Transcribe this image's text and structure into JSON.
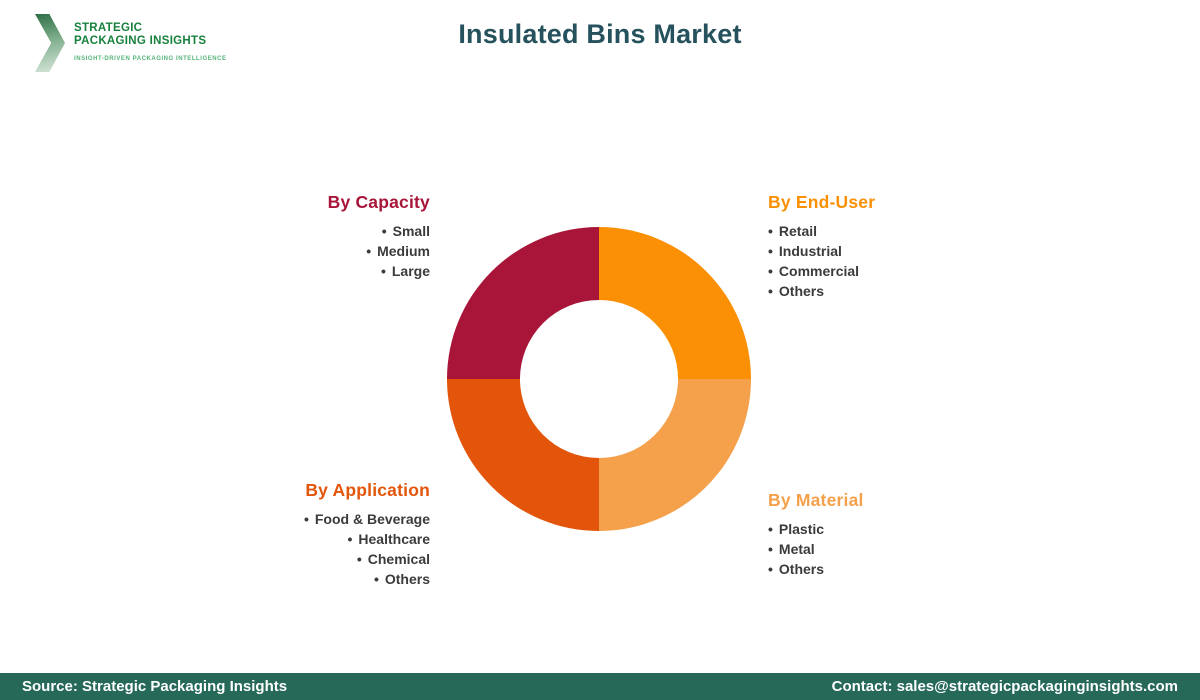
{
  "logo": {
    "line1": "STRATEGIC",
    "line2": "PACKAGING INSIGHTS",
    "tagline": "INSIGHT-DRIVEN PACKAGING INTELLIGENCE"
  },
  "header": {
    "title": "Insulated Bins Market"
  },
  "chart_data": {
    "type": "pie",
    "variant": "donut",
    "title": "Insulated Bins Market",
    "inner_radius_ratio": 0.52,
    "start_angle_deg": -90,
    "direction": "clockwise",
    "legend_position": "around",
    "segments": [
      {
        "label": "By End-User",
        "value": 25,
        "color": "#FB9005",
        "position": "top-right",
        "items": [
          "Retail",
          "Industrial",
          "Commercial",
          "Others"
        ]
      },
      {
        "label": "By Material",
        "value": 25,
        "color": "#F5A04B",
        "position": "bottom-right",
        "items": [
          "Plastic",
          "Metal",
          "Others"
        ]
      },
      {
        "label": "By Application",
        "value": 25,
        "color": "#E2550B",
        "position": "bottom-left",
        "items": [
          "Food & Beverage",
          "Healthcare",
          "Chemical",
          "Others"
        ]
      },
      {
        "label": "By Capacity",
        "value": 25,
        "color": "#A81539",
        "position": "top-left",
        "items": [
          "Small",
          "Medium",
          "Large"
        ]
      }
    ]
  },
  "footer": {
    "source": "Source: Strategic Packaging Insights",
    "contact": "Contact: sales@strategicpackaginginsights.com"
  },
  "colors": {
    "title": "#26525E",
    "item_text": "#3B3B3D",
    "footer_bg": "#266959",
    "footer_text": "#FFFFFF",
    "logo_text": "#17813C",
    "logo_tagline": "#55B377",
    "logo_chevron_dark": "#2E6F47",
    "logo_chevron_light": "#D9E8DC",
    "background": "#FFFFFF"
  }
}
